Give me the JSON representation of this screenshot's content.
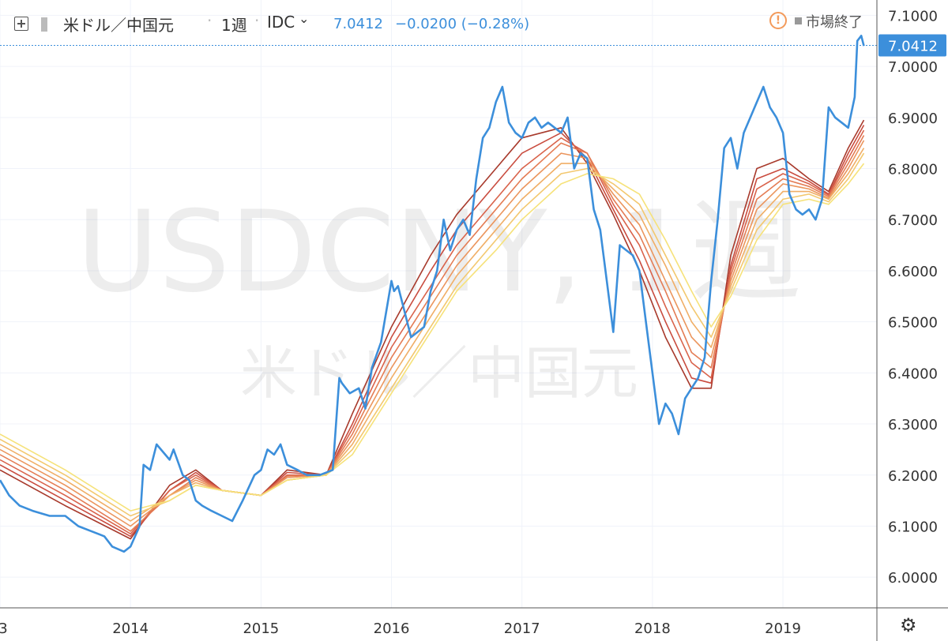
{
  "header": {
    "symbol": "米ドル／中国元",
    "interval": "1週",
    "source": "IDC",
    "last": "7.0412",
    "change": "−0.0200 (−0.28%)",
    "market_status": "市場終了"
  },
  "watermark": {
    "line1": "USDCNY, 1週",
    "line2": "米ドル／中国元"
  },
  "icons": {
    "add": "plus-box-icon",
    "flag": "flag-icon",
    "dropdown": "chevron-down-icon",
    "warning": "warning-icon",
    "settings": "gear-icon"
  },
  "colors": {
    "price_line": "#3c8fdb",
    "ribbon": [
      "#f6e27a",
      "#f3c86f",
      "#f0ae66",
      "#eb955d",
      "#e47c54",
      "#d9634b",
      "#c94c3f",
      "#a83a2c"
    ],
    "price_label_bg": "#3c8fdb"
  },
  "chart_data": {
    "type": "line",
    "title": "",
    "xlabel": "",
    "ylabel": "",
    "x_ticks": [
      "3",
      "2014",
      "2015",
      "2016",
      "2017",
      "2018",
      "2019"
    ],
    "y_ticks": [
      "6.0000",
      "6.1000",
      "6.2000",
      "6.3000",
      "6.4000",
      "6.5000",
      "6.6000",
      "6.7000",
      "6.8000",
      "6.9000",
      "7.0000",
      "7.1000"
    ],
    "ylim": [
      5.94,
      7.13
    ],
    "xlim": [
      2013.0,
      2019.72
    ],
    "last_price_label": "7.0412",
    "last_price": 7.0412,
    "grid": true,
    "series": [
      {
        "name": "USDCNY",
        "x": [
          2013.0,
          2013.07,
          2013.15,
          2013.25,
          2013.38,
          2013.5,
          2013.6,
          2013.7,
          2013.8,
          2013.86,
          2013.95,
          2014.0,
          2014.07,
          2014.1,
          2014.15,
          2014.2,
          2014.3,
          2014.33,
          2014.4,
          2014.45,
          2014.5,
          2014.55,
          2014.62,
          2014.7,
          2014.78,
          2014.86,
          2014.95,
          2015.0,
          2015.05,
          2015.1,
          2015.15,
          2015.2,
          2015.28,
          2015.35,
          2015.45,
          2015.55,
          2015.6,
          2015.62,
          2015.68,
          2015.75,
          2015.8,
          2015.85,
          2015.92,
          2016.0,
          2016.02,
          2016.05,
          2016.1,
          2016.15,
          2016.25,
          2016.3,
          2016.35,
          2016.4,
          2016.45,
          2016.5,
          2016.55,
          2016.6,
          2016.65,
          2016.7,
          2016.75,
          2016.8,
          2016.85,
          2016.9,
          2016.95,
          2017.0,
          2017.05,
          2017.1,
          2017.15,
          2017.2,
          2017.3,
          2017.35,
          2017.4,
          2017.45,
          2017.5,
          2017.55,
          2017.6,
          2017.65,
          2017.7,
          2017.75,
          2017.8,
          2017.85,
          2017.9,
          2017.95,
          2018.0,
          2018.05,
          2018.1,
          2018.15,
          2018.2,
          2018.25,
          2018.3,
          2018.35,
          2018.4,
          2018.45,
          2018.5,
          2018.55,
          2018.6,
          2018.65,
          2018.7,
          2018.75,
          2018.8,
          2018.85,
          2018.9,
          2018.95,
          2019.0,
          2019.05,
          2019.1,
          2019.15,
          2019.2,
          2019.25,
          2019.3,
          2019.35,
          2019.4,
          2019.45,
          2019.5,
          2019.55,
          2019.57,
          2019.6,
          2019.62
        ],
        "y": [
          6.19,
          6.16,
          6.14,
          6.13,
          6.12,
          6.12,
          6.1,
          6.09,
          6.08,
          6.06,
          6.05,
          6.06,
          6.1,
          6.22,
          6.21,
          6.26,
          6.23,
          6.25,
          6.2,
          6.19,
          6.15,
          6.14,
          6.13,
          6.12,
          6.11,
          6.15,
          6.2,
          6.21,
          6.25,
          6.24,
          6.26,
          6.22,
          6.21,
          6.2,
          6.2,
          6.21,
          6.39,
          6.38,
          6.36,
          6.37,
          6.33,
          6.41,
          6.46,
          6.58,
          6.56,
          6.57,
          6.52,
          6.47,
          6.49,
          6.56,
          6.6,
          6.7,
          6.64,
          6.68,
          6.7,
          6.67,
          6.78,
          6.86,
          6.88,
          6.93,
          6.96,
          6.89,
          6.87,
          6.86,
          6.89,
          6.9,
          6.88,
          6.89,
          6.87,
          6.9,
          6.8,
          6.83,
          6.82,
          6.72,
          6.68,
          6.58,
          6.48,
          6.65,
          6.64,
          6.63,
          6.6,
          6.5,
          6.4,
          6.3,
          6.34,
          6.32,
          6.28,
          6.35,
          6.37,
          6.39,
          6.43,
          6.58,
          6.7,
          6.84,
          6.86,
          6.8,
          6.87,
          6.9,
          6.93,
          6.96,
          6.92,
          6.9,
          6.87,
          6.75,
          6.72,
          6.71,
          6.72,
          6.7,
          6.74,
          6.92,
          6.9,
          6.89,
          6.88,
          6.94,
          7.05,
          7.06,
          7.04
        ]
      },
      {
        "name": "",
        "x": [
          2013.0,
          2013.5,
          2014.0,
          2014.3,
          2014.5,
          2014.7,
          2015.0,
          2015.2,
          2015.5,
          2015.7,
          2016.0,
          2016.3,
          2016.5,
          2016.8,
          2017.0,
          2017.3,
          2017.5,
          2017.7,
          2017.9,
          2018.1,
          2018.3,
          2018.45,
          2018.6,
          2018.8,
          2019.0,
          2019.2,
          2019.35,
          2019.5,
          2019.62
        ],
        "y": [
          6.28,
          6.21,
          6.13,
          6.15,
          6.18,
          6.17,
          6.16,
          6.19,
          6.2,
          6.24,
          6.36,
          6.48,
          6.56,
          6.64,
          6.7,
          6.77,
          6.79,
          6.78,
          6.75,
          6.66,
          6.56,
          6.49,
          6.55,
          6.66,
          6.73,
          6.74,
          6.73,
          6.77,
          6.81
        ]
      },
      {
        "name": "",
        "x": [
          2013.0,
          2013.5,
          2014.0,
          2014.3,
          2014.5,
          2014.7,
          2015.0,
          2015.2,
          2015.5,
          2015.7,
          2016.0,
          2016.3,
          2016.5,
          2016.8,
          2017.0,
          2017.3,
          2017.5,
          2017.7,
          2017.9,
          2018.1,
          2018.3,
          2018.45,
          2018.6,
          2018.8,
          2019.0,
          2019.2,
          2019.35,
          2019.5,
          2019.62
        ],
        "y": [
          6.27,
          6.2,
          6.12,
          6.15,
          6.18,
          6.17,
          6.16,
          6.19,
          6.2,
          6.25,
          6.37,
          6.49,
          6.57,
          6.66,
          6.72,
          6.79,
          6.8,
          6.77,
          6.73,
          6.63,
          6.53,
          6.47,
          6.56,
          6.68,
          6.74,
          6.75,
          6.735,
          6.78,
          6.83
        ]
      },
      {
        "name": "",
        "x": [
          2013.0,
          2013.5,
          2014.0,
          2014.3,
          2014.5,
          2014.7,
          2015.0,
          2015.2,
          2015.5,
          2015.7,
          2016.0,
          2016.3,
          2016.5,
          2016.8,
          2017.0,
          2017.3,
          2017.5,
          2017.7,
          2017.9,
          2018.1,
          2018.3,
          2018.45,
          2018.6,
          2018.8,
          2019.0,
          2019.2,
          2019.35,
          2019.5,
          2019.62
        ],
        "y": [
          6.26,
          6.19,
          6.11,
          6.16,
          6.185,
          6.17,
          6.16,
          6.19,
          6.2,
          6.26,
          6.39,
          6.51,
          6.59,
          6.68,
          6.74,
          6.81,
          6.81,
          6.76,
          6.71,
          6.61,
          6.5,
          6.45,
          6.57,
          6.7,
          6.755,
          6.755,
          6.74,
          6.79,
          6.84
        ]
      },
      {
        "name": "",
        "x": [
          2013.0,
          2013.5,
          2014.0,
          2014.3,
          2014.5,
          2014.7,
          2015.0,
          2015.2,
          2015.5,
          2015.7,
          2016.0,
          2016.3,
          2016.5,
          2016.8,
          2017.0,
          2017.3,
          2017.5,
          2017.7,
          2017.9,
          2018.1,
          2018.3,
          2018.45,
          2018.6,
          2018.8,
          2019.0,
          2019.2,
          2019.35,
          2019.5,
          2019.62
        ],
        "y": [
          6.25,
          6.18,
          6.1,
          6.16,
          6.19,
          6.17,
          6.16,
          6.195,
          6.2,
          6.27,
          6.41,
          6.53,
          6.61,
          6.7,
          6.76,
          6.83,
          6.82,
          6.75,
          6.69,
          6.58,
          6.47,
          6.43,
          6.58,
          6.72,
          6.77,
          6.76,
          6.742,
          6.8,
          6.855
        ]
      },
      {
        "name": "",
        "x": [
          2013.0,
          2013.5,
          2014.0,
          2014.3,
          2014.5,
          2014.7,
          2015.0,
          2015.2,
          2015.5,
          2015.7,
          2016.0,
          2016.3,
          2016.5,
          2016.8,
          2017.0,
          2017.3,
          2017.5,
          2017.7,
          2017.9,
          2018.1,
          2018.3,
          2018.45,
          2018.6,
          2018.8,
          2019.0,
          2019.2,
          2019.35,
          2019.5,
          2019.62
        ],
        "y": [
          6.24,
          6.17,
          6.09,
          6.16,
          6.195,
          6.17,
          6.16,
          6.198,
          6.2,
          6.28,
          6.43,
          6.55,
          6.63,
          6.72,
          6.78,
          6.85,
          6.83,
          6.74,
          6.67,
          6.56,
          6.44,
          6.41,
          6.59,
          6.74,
          6.78,
          6.765,
          6.745,
          6.81,
          6.865
        ]
      },
      {
        "name": "",
        "x": [
          2013.0,
          2013.5,
          2014.0,
          2014.3,
          2014.5,
          2014.7,
          2015.0,
          2015.2,
          2015.5,
          2015.7,
          2016.0,
          2016.3,
          2016.5,
          2016.8,
          2017.0,
          2017.3,
          2017.5,
          2017.7,
          2017.9,
          2018.1,
          2018.3,
          2018.45,
          2018.6,
          2018.8,
          2019.0,
          2019.2,
          2019.35,
          2019.5,
          2019.62
        ],
        "y": [
          6.23,
          6.16,
          6.085,
          6.17,
          6.2,
          6.17,
          6.16,
          6.2,
          6.2,
          6.29,
          6.45,
          6.57,
          6.65,
          6.74,
          6.8,
          6.86,
          6.83,
          6.73,
          6.65,
          6.53,
          6.42,
          6.39,
          6.6,
          6.76,
          6.79,
          6.77,
          6.748,
          6.82,
          6.875
        ]
      },
      {
        "name": "",
        "x": [
          2013.0,
          2013.5,
          2014.0,
          2014.3,
          2014.5,
          2014.7,
          2015.0,
          2015.2,
          2015.5,
          2015.7,
          2016.0,
          2016.3,
          2016.5,
          2016.8,
          2017.0,
          2017.3,
          2017.5,
          2017.7,
          2017.9,
          2018.1,
          2018.3,
          2018.45,
          2018.6,
          2018.8,
          2019.0,
          2019.2,
          2019.35,
          2019.5,
          2019.62
        ],
        "y": [
          6.22,
          6.15,
          6.08,
          6.17,
          6.205,
          6.17,
          6.16,
          6.205,
          6.2,
          6.3,
          6.47,
          6.6,
          6.68,
          6.77,
          6.83,
          6.87,
          6.82,
          6.72,
          6.62,
          6.5,
          6.39,
          6.38,
          6.61,
          6.78,
          6.8,
          6.775,
          6.75,
          6.83,
          6.885
        ]
      },
      {
        "name": "",
        "x": [
          2013.0,
          2013.5,
          2014.0,
          2014.3,
          2014.5,
          2014.7,
          2015.0,
          2015.2,
          2015.5,
          2015.7,
          2016.0,
          2016.3,
          2016.5,
          2016.8,
          2017.0,
          2017.3,
          2017.5,
          2017.7,
          2017.9,
          2018.1,
          2018.3,
          2018.45,
          2018.6,
          2018.8,
          2019.0,
          2019.2,
          2019.35,
          2019.5,
          2019.62
        ],
        "y": [
          6.21,
          6.14,
          6.075,
          6.18,
          6.21,
          6.17,
          6.16,
          6.21,
          6.2,
          6.32,
          6.49,
          6.63,
          6.71,
          6.8,
          6.86,
          6.88,
          6.81,
          6.71,
          6.6,
          6.47,
          6.37,
          6.37,
          6.63,
          6.8,
          6.82,
          6.78,
          6.755,
          6.84,
          6.895
        ]
      }
    ]
  }
}
